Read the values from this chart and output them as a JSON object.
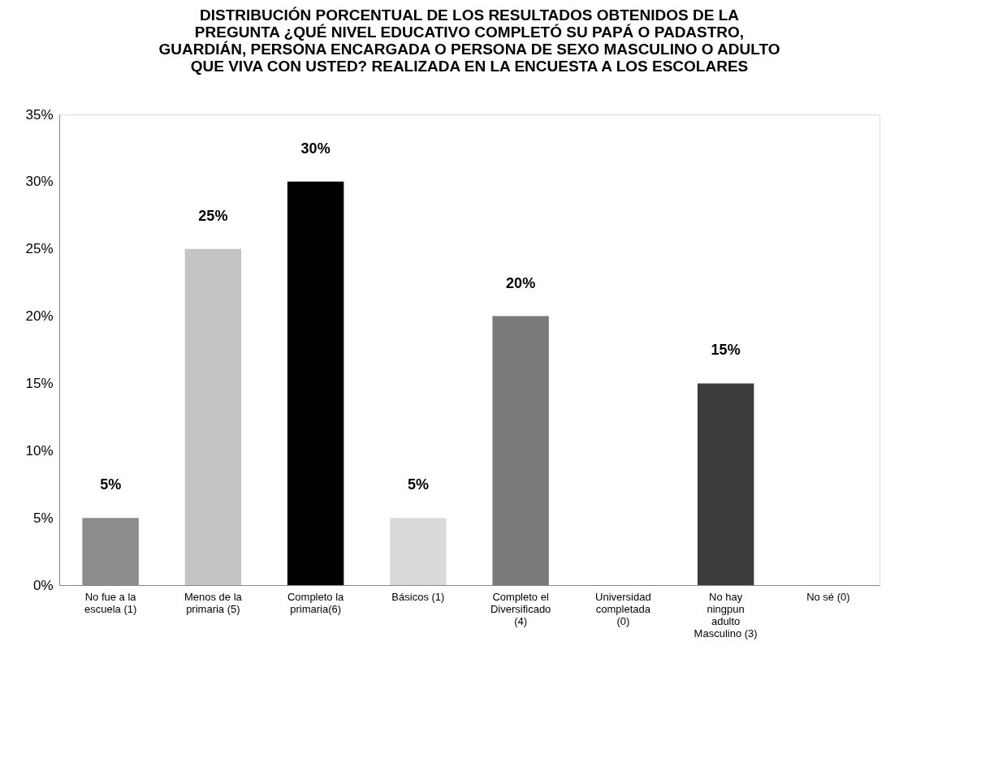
{
  "chart_data": {
    "type": "bar",
    "title": "DISTRIBUCIÓN PORCENTUAL DE  LOS RESULTADOS OBTENIDOS  DE LA PREGUNTA ¿QUÉ NIVEL EDUCATIVO COMPLETÓ SU PAPÁ O PADASTRO, GUARDIÁN, PERSONA ENCARGADA O PERSONA DE SEXO MASCULINO O ADULTO QUE VIVA CON USTED? REALIZADA EN LA ENCUESTA A LOS ESCOLARES",
    "categories": [
      "No fue a la escuela (1)",
      "Menos de la primaria (5)",
      "Completo la primaria(6)",
      "Básicos (1)",
      "Completo el Diversificado (4)",
      "Universidad completada (0)",
      "No hay ningpun adulto Masculino (3)",
      "No sé (0)"
    ],
    "values": [
      5,
      25,
      30,
      5,
      20,
      0,
      15,
      0
    ],
    "colors": [
      "#8c8c8c",
      "#c4c4c4",
      "#000000",
      "#d9d9d9",
      "#7a7a7a",
      "#a0a0a0",
      "#3c3c3c",
      "#a0a0a0"
    ],
    "value_labels": [
      "5%",
      "25%",
      "30%",
      "5%",
      "20%",
      null,
      "15%",
      null
    ],
    "ylim": [
      0,
      35
    ],
    "yticks": [
      {
        "value": 0,
        "label": "0%"
      },
      {
        "value": 5,
        "label": "5%"
      },
      {
        "value": 10,
        "label": "10%"
      },
      {
        "value": 15,
        "label": "15%"
      },
      {
        "value": 20,
        "label": "20%"
      },
      {
        "value": 25,
        "label": "25%"
      },
      {
        "value": 30,
        "label": "30%"
      },
      {
        "value": 35,
        "label": "35%"
      }
    ],
    "grid": false
  }
}
